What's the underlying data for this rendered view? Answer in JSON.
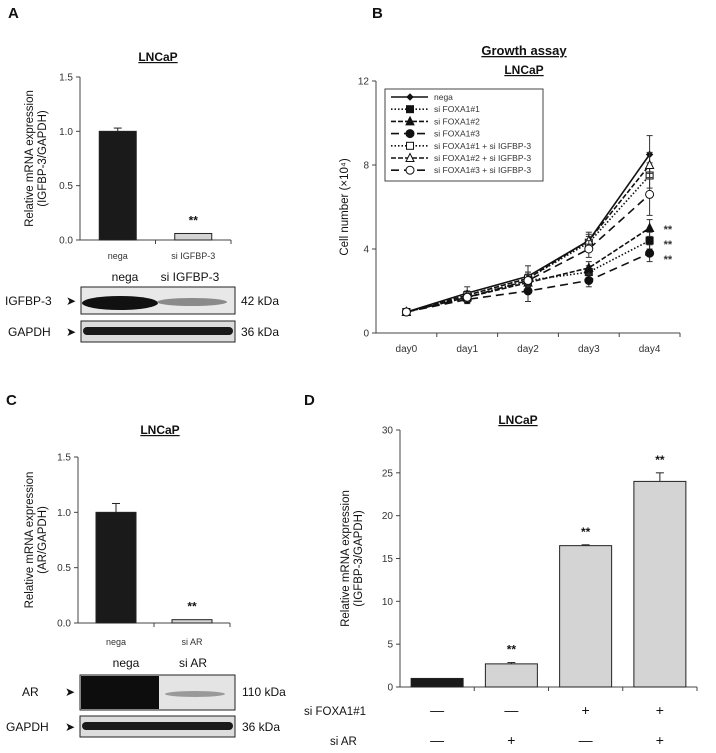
{
  "panels": {
    "A": {
      "label": "A",
      "title": "LNCaP",
      "blot_lanes": [
        "nega",
        "si IGFBP-3"
      ],
      "blot_rows": [
        {
          "name": "IGFBP-3",
          "size": "42 kDa"
        },
        {
          "name": "GAPDH",
          "size": "36 kDa"
        }
      ]
    },
    "B": {
      "label": "B",
      "super_title": "Growth assay",
      "title": "LNCaP"
    },
    "C": {
      "label": "C",
      "title": "LNCaP",
      "blot_lanes": [
        "nega",
        "si AR"
      ],
      "blot_rows": [
        {
          "name": "AR",
          "size": "110 kDa"
        },
        {
          "name": "GAPDH",
          "size": "36 kDa"
        }
      ]
    },
    "D": {
      "label": "D",
      "title": "LNCaP",
      "conditions": [
        {
          "name": "si FOXA1#1",
          "signs": [
            "—",
            "—",
            "+",
            "+"
          ]
        },
        {
          "name": "si AR",
          "signs": [
            "—",
            "+",
            "—",
            "+"
          ]
        }
      ]
    }
  },
  "chart_data": [
    {
      "id": "A",
      "type": "bar",
      "title": "LNCaP",
      "categories": [
        "nega",
        "si IGFBP-3"
      ],
      "values": [
        1.0,
        0.06
      ],
      "errors": [
        0.03,
        0.0
      ],
      "colors": [
        "#1a1a1a",
        "#d4d4d4"
      ],
      "annotations": [
        "",
        "**"
      ],
      "ylabel": "Relative mRNA expression (IGFBP-3/GAPDH)",
      "ylabel_lines": [
        "Relative mRNA expression",
        "(IGFBP-3/GAPDH)"
      ],
      "ylim": [
        0,
        1.5
      ],
      "yticks": [
        "0.0",
        "0.5",
        "1.0",
        "1.5"
      ]
    },
    {
      "id": "B",
      "type": "line",
      "title": "Growth assay",
      "subtitle": "LNCaP",
      "categories": [
        "day0",
        "day1",
        "day2",
        "day3",
        "day4"
      ],
      "ylabel": "Cell number (×10⁴)",
      "ylim": [
        0,
        12
      ],
      "yticks": [
        "0",
        "4",
        "8",
        "12"
      ],
      "legend_position": "top-left",
      "series": [
        {
          "name": "nega",
          "values": [
            1,
            1.9,
            2.7,
            4.4,
            8.5
          ],
          "errors": [
            0.1,
            0.3,
            0.5,
            0.4,
            0.9
          ],
          "marker": "diamond",
          "fill": true,
          "dash": ""
        },
        {
          "name": "si FOXA1#1",
          "values": [
            1,
            1.7,
            2.5,
            2.9,
            4.4
          ],
          "errors": [
            0.1,
            0.2,
            0.3,
            0.3,
            0.4
          ],
          "marker": "square",
          "fill": true,
          "dash": "1.5,2"
        },
        {
          "name": "si FOXA1#2",
          "values": [
            1,
            1.7,
            2.4,
            3.1,
            5.0
          ],
          "errors": [
            0.1,
            0.2,
            0.3,
            0.3,
            0.4
          ],
          "marker": "triangle",
          "fill": true,
          "dash": "5,2"
        },
        {
          "name": "si FOXA1#3",
          "values": [
            1,
            1.6,
            2.0,
            2.5,
            3.8
          ],
          "errors": [
            0.1,
            0.2,
            0.5,
            0.3,
            0.4
          ],
          "marker": "circle",
          "fill": true,
          "dash": "8,5"
        },
        {
          "name": "si FOXA1#1 + si IGFBP-3",
          "values": [
            1,
            1.8,
            2.6,
            4.3,
            7.5
          ],
          "errors": [
            0.1,
            0.2,
            0.3,
            0.3,
            0.6
          ],
          "marker": "square",
          "fill": false,
          "dash": "1.5,2"
        },
        {
          "name": "si FOXA1#2 + si IGFBP-3",
          "values": [
            1,
            1.8,
            2.6,
            4.4,
            8.0
          ],
          "errors": [
            0.1,
            0.2,
            0.3,
            0.3,
            0.6
          ],
          "marker": "triangle",
          "fill": false,
          "dash": "5,2"
        },
        {
          "name": "si FOXA1#3 + si IGFBP-3",
          "values": [
            1,
            1.7,
            2.5,
            4.0,
            6.6
          ],
          "errors": [
            0.1,
            0.2,
            0.3,
            0.4,
            1.0
          ],
          "marker": "circle",
          "fill": false,
          "dash": "8,5"
        }
      ],
      "annotations": [
        {
          "series": "si FOXA1#2",
          "text": "**"
        },
        {
          "series": "si FOXA1#1",
          "text": "**"
        },
        {
          "series": "si FOXA1#3",
          "text": "**"
        }
      ]
    },
    {
      "id": "C",
      "type": "bar",
      "title": "LNCaP",
      "categories": [
        "nega",
        "si AR"
      ],
      "values": [
        1.0,
        0.03
      ],
      "errors": [
        0.08,
        0.0
      ],
      "colors": [
        "#1a1a1a",
        "#d4d4d4"
      ],
      "annotations": [
        "",
        "**"
      ],
      "ylabel": "Relative mRNA expression (AR/GAPDH)",
      "ylabel_lines": [
        "Relative mRNA expression",
        "(AR/GAPDH)"
      ],
      "ylim": [
        0,
        1.5
      ],
      "yticks": [
        "0.0",
        "0.5",
        "1.0",
        "1.5"
      ]
    },
    {
      "id": "D",
      "type": "bar",
      "title": "LNCaP",
      "categories": [
        "si FOXA1#1 −, si AR −",
        "si FOXA1#1 −, si AR +",
        "si FOXA1#1 +, si AR −",
        "si FOXA1#1 +, si AR +"
      ],
      "values": [
        1.0,
        2.7,
        16.5,
        24.0
      ],
      "errors": [
        0,
        0.15,
        0.1,
        1.0
      ],
      "colors": [
        "#1a1a1a",
        "#d4d4d4",
        "#d4d4d4",
        "#d4d4d4"
      ],
      "annotations": [
        "",
        "**",
        "**",
        "**"
      ],
      "ylabel": "Relative mRNA expression (IGFBP-3/GAPDH)",
      "ylabel_lines": [
        "Relative mRNA expression",
        "(IGFBP-3/GAPDH)"
      ],
      "ylim": [
        0,
        30
      ],
      "yticks": [
        "0",
        "5",
        "10",
        "15",
        "20",
        "25",
        "30"
      ]
    }
  ]
}
